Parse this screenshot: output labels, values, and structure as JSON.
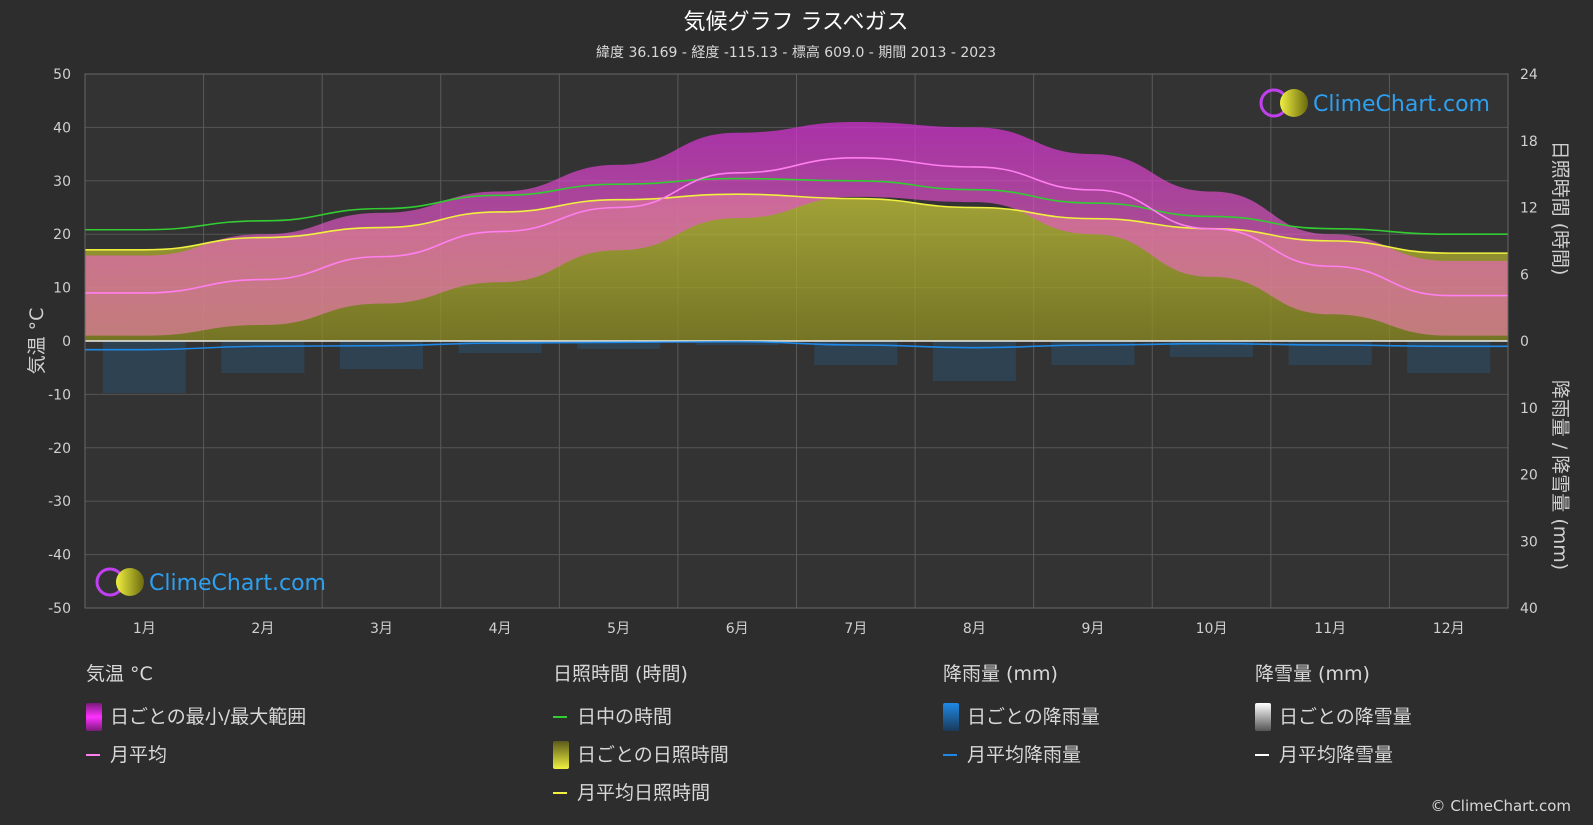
{
  "header": {
    "title": "気候グラフ ラスベガス",
    "subtitle": "緯度 36.169 - 経度 -115.13 - 標高 609.0 - 期間 2013 - 2023"
  },
  "branding": {
    "logo_text": "ClimeChart.com",
    "copyright": "© ClimeChart.com"
  },
  "colors": {
    "temp_range": "#e040e0",
    "temp_avg": "#ff7ff0",
    "daylight": "#33cc33",
    "sunshine_fill": "#b8b830",
    "sunshine_avg": "#f0f040",
    "rain": "#1e88e5",
    "snow": "#ffffff",
    "logo_blue": "#2ea0f0"
  },
  "chart_data": {
    "type": "line",
    "categories": [
      "1月",
      "2月",
      "3月",
      "4月",
      "5月",
      "6月",
      "7月",
      "8月",
      "9月",
      "10月",
      "11月",
      "12月"
    ],
    "axes": {
      "left": {
        "title": "気温 °C",
        "range": [
          -50,
          50
        ],
        "ticks": [
          50,
          40,
          30,
          20,
          10,
          0,
          -10,
          -20,
          -30,
          -40,
          -50
        ]
      },
      "right_top": {
        "title": "日照時間 (時間)",
        "range": [
          0,
          24
        ],
        "ticks": [
          24,
          18,
          12,
          6,
          0
        ]
      },
      "right_bottom": {
        "title": "降雨量 / 降雪量 (mm)",
        "range": [
          0,
          40
        ],
        "ticks": [
          10,
          20,
          30,
          40
        ]
      }
    },
    "grid": true,
    "series": [
      {
        "name": "日中の時間",
        "unit": "h",
        "values": [
          10.0,
          10.8,
          11.9,
          13.1,
          14.1,
          14.6,
          14.4,
          13.6,
          12.4,
          11.2,
          10.1,
          9.6
        ]
      },
      {
        "name": "月平均日照時間",
        "unit": "h",
        "values": [
          8.2,
          9.3,
          10.2,
          11.6,
          12.7,
          13.2,
          12.8,
          12.0,
          11.0,
          10.1,
          9.0,
          7.9
        ]
      },
      {
        "name": "月平均",
        "unit": "°C",
        "values": [
          9.0,
          11.5,
          15.8,
          20.5,
          25.0,
          31.5,
          34.3,
          32.6,
          28.3,
          21.0,
          14.0,
          8.5
        ]
      },
      {
        "name": "月平均降雨量",
        "unit": "mm",
        "values": [
          1.3,
          0.8,
          0.7,
          0.3,
          0.2,
          0.1,
          0.6,
          1.0,
          0.6,
          0.4,
          0.6,
          0.8
        ]
      },
      {
        "name": "月平均降雪量",
        "unit": "mm",
        "values": [
          0,
          0,
          0,
          0,
          0,
          0,
          0,
          0,
          0,
          0,
          0,
          0
        ]
      }
    ],
    "temp_range": {
      "name": "日ごとの最小/最大範囲",
      "min": [
        1,
        3,
        7,
        11,
        17,
        23,
        27,
        26,
        20,
        12,
        5,
        1
      ],
      "max": [
        16,
        20,
        24,
        28,
        33,
        39,
        41,
        40,
        35,
        28,
        20,
        15
      ]
    }
  },
  "legend": {
    "groups": [
      {
        "header": "気温 °C",
        "items": [
          {
            "label": "日ごとの最小/最大範囲",
            "swatch": "block",
            "color": "#e040e0"
          },
          {
            "label": "月平均",
            "swatch": "line",
            "color": "#ff7ff0"
          }
        ]
      },
      {
        "header": "日照時間 (時間)",
        "items": [
          {
            "label": "日中の時間",
            "swatch": "line",
            "color": "#33cc33"
          },
          {
            "label": "日ごとの日照時間",
            "swatch": "block",
            "color": "#d8d840"
          },
          {
            "label": "月平均日照時間",
            "swatch": "line",
            "color": "#f0f040"
          }
        ]
      },
      {
        "header": "降雨量 (mm)",
        "items": [
          {
            "label": "日ごとの降雨量",
            "swatch": "block",
            "color": "#1e88e5"
          },
          {
            "label": "月平均降雨量",
            "swatch": "line",
            "color": "#1e88e5"
          }
        ]
      },
      {
        "header": "降雪量 (mm)",
        "items": [
          {
            "label": "日ごとの降雪量",
            "swatch": "block",
            "color": "#ffffff"
          },
          {
            "label": "月平均降雪量",
            "swatch": "line",
            "color": "#ffffff"
          }
        ]
      }
    ]
  }
}
